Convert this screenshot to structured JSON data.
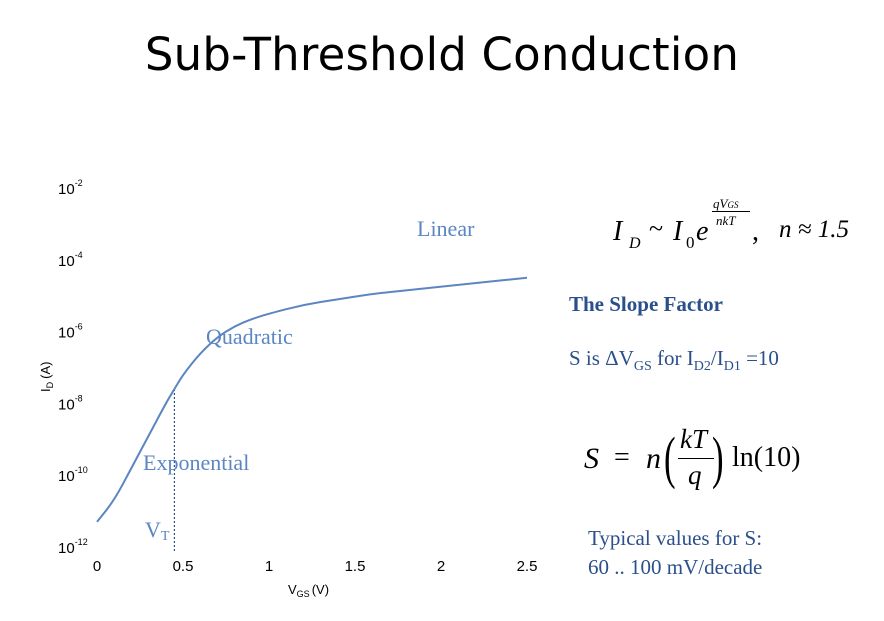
{
  "slide": {
    "title": "Sub-Threshold Conduction"
  },
  "chart_data": {
    "type": "line",
    "x_label_main": "V",
    "x_label_sub": "GS",
    "x_label_unit": "(V)",
    "y_label_main": "I",
    "y_label_sub": "D",
    "y_label_unit": "(A)",
    "x_ticks": [
      "0",
      "0.5",
      "1",
      "1.5",
      "2",
      "2.5"
    ],
    "x_tick_values": [
      0,
      0.5,
      1,
      1.5,
      2,
      2.5
    ],
    "y_ticks": [
      {
        "base": "10",
        "exp": "-2",
        "value": -2
      },
      {
        "base": "10",
        "exp": "-4",
        "value": -4
      },
      {
        "base": "10",
        "exp": "-6",
        "value": -6
      },
      {
        "base": "10",
        "exp": "-8",
        "value": -8
      },
      {
        "base": "10",
        "exp": "-10",
        "value": -10
      },
      {
        "base": "10",
        "exp": "-12",
        "value": -12
      }
    ],
    "xlim": [
      0,
      2.5
    ],
    "ylim_log10": [
      -12,
      -2
    ],
    "y_scale": "log",
    "series": [
      {
        "color": "#5b86c2",
        "x": [
          0,
          0.1,
          0.2,
          0.3,
          0.4,
          0.45,
          0.5,
          0.6,
          0.7,
          0.8,
          0.9,
          1.0,
          1.2,
          1.4,
          1.6,
          1.8,
          2.0,
          2.2,
          2.5
        ],
        "log10_y": [
          -11.3,
          -10.7,
          -9.8,
          -8.9,
          -8.0,
          -7.6,
          -7.2,
          -6.6,
          -6.15,
          -5.85,
          -5.65,
          -5.5,
          -5.25,
          -5.1,
          -4.95,
          -4.85,
          -4.75,
          -4.65,
          -4.5
        ]
      }
    ],
    "vt_marker": {
      "x": 0.45,
      "label_main": "V",
      "label_sub": "T"
    },
    "region_labels": [
      "Linear",
      "Quadratic",
      "Exponential"
    ]
  },
  "equations": {
    "main": {
      "lhs": "I",
      "lhs_sub": "D",
      "rel": "~",
      "i0": "I",
      "i0_sub": "0",
      "e": "e",
      "num": "qV",
      "num_sub": "GS",
      "den": "nkT",
      "tail": ",",
      "n_approx": "n ≈ 1.5"
    },
    "slope": {
      "lhs": "S",
      "eq": "=",
      "n": "n",
      "num": "kT",
      "den": "q",
      "ln": "ln(10)"
    }
  },
  "slope_factor": {
    "title": "The Slope Factor",
    "def_s": "S is ΔV",
    "def_gs": "GS",
    "def_for": " for I",
    "def_d2": "D2",
    "def_slash": "/I",
    "def_d1": "D1",
    "def_eq": " =10"
  },
  "typical": {
    "line1": "Typical values for S:",
    "line2": "60 .. 100 mV/decade"
  }
}
